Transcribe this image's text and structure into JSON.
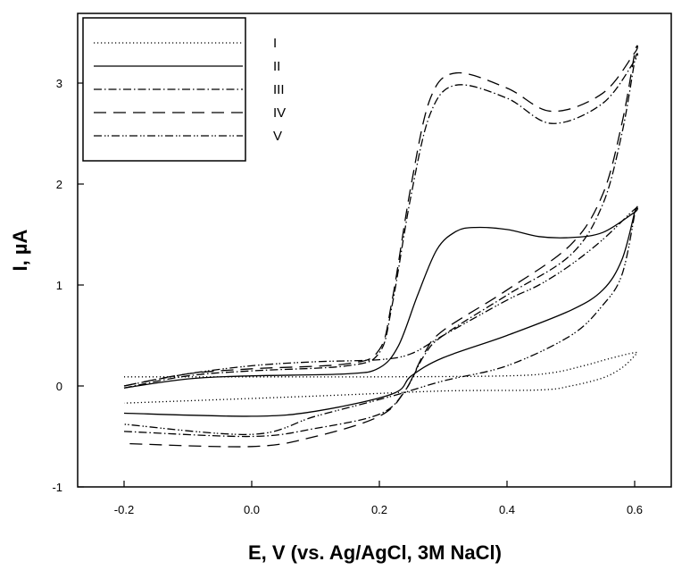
{
  "chart_data": {
    "type": "line",
    "title": "",
    "xlabel": "E, V (vs. Ag/AgCl, 3M NaCl)",
    "ylabel": "I, µA",
    "xlim": [
      -0.27,
      0.66
    ],
    "ylim": [
      -1,
      3.6
    ],
    "xticks": [
      "-0.2",
      "0.0",
      "0.2",
      "0.4",
      "0.6"
    ],
    "yticks": [
      "-1",
      "0",
      "1",
      "2",
      "3"
    ],
    "grid": false,
    "legend_position": "top-left",
    "series": [
      {
        "name": "I",
        "style": "dotted",
        "x": [
          -0.2,
          0.0,
          0.2,
          0.4,
          0.47,
          0.52,
          0.56,
          0.6,
          0.6,
          0.58,
          0.55,
          0.5,
          0.45,
          0.3,
          0.1,
          -0.2
        ],
        "y": [
          0.09,
          0.09,
          0.09,
          0.1,
          0.13,
          0.2,
          0.27,
          0.33,
          0.3,
          0.18,
          0.08,
          0.0,
          -0.04,
          -0.05,
          -0.1,
          -0.17
        ]
      },
      {
        "name": "II",
        "style": "solid",
        "x": [
          -0.2,
          -0.1,
          0.0,
          0.15,
          0.2,
          0.23,
          0.26,
          0.29,
          0.32,
          0.35,
          0.4,
          0.45,
          0.5,
          0.55,
          0.6,
          0.6,
          0.58,
          0.55,
          0.5,
          0.4,
          0.3,
          0.25,
          0.22,
          0.1,
          0.0,
          -0.2
        ],
        "y": [
          -0.02,
          0.07,
          0.1,
          0.12,
          0.18,
          0.4,
          0.9,
          1.35,
          1.53,
          1.57,
          1.55,
          1.48,
          1.47,
          1.52,
          1.72,
          1.72,
          1.25,
          0.95,
          0.75,
          0.5,
          0.28,
          0.1,
          -0.08,
          -0.25,
          -0.3,
          -0.27
        ]
      },
      {
        "name": "III",
        "style": "dash-dot",
        "x": [
          -0.2,
          -0.1,
          0.0,
          0.15,
          0.2,
          0.22,
          0.25,
          0.28,
          0.32,
          0.4,
          0.47,
          0.55,
          0.6,
          0.6,
          0.58,
          0.55,
          0.5,
          0.4,
          0.3,
          0.27,
          0.24,
          0.2,
          0.1,
          0.0,
          -0.2
        ],
        "y": [
          -0.02,
          0.1,
          0.15,
          0.2,
          0.33,
          0.8,
          1.9,
          2.7,
          2.98,
          2.85,
          2.6,
          2.8,
          3.22,
          3.22,
          2.5,
          1.8,
          1.3,
          0.9,
          0.5,
          0.3,
          -0.05,
          -0.28,
          -0.42,
          -0.5,
          -0.45
        ]
      },
      {
        "name": "IV",
        "style": "dashed",
        "x": [
          -0.2,
          -0.1,
          0.0,
          0.15,
          0.2,
          0.22,
          0.25,
          0.28,
          0.32,
          0.4,
          0.47,
          0.55,
          0.6,
          0.6,
          0.58,
          0.55,
          0.5,
          0.4,
          0.3,
          0.27,
          0.24,
          0.2,
          0.1,
          0.0,
          -0.2
        ],
        "y": [
          0.0,
          0.12,
          0.17,
          0.22,
          0.36,
          0.85,
          2.0,
          2.85,
          3.1,
          2.95,
          2.72,
          2.9,
          3.3,
          3.3,
          2.6,
          1.9,
          1.4,
          0.95,
          0.55,
          0.32,
          -0.05,
          -0.3,
          -0.5,
          -0.6,
          -0.57
        ]
      },
      {
        "name": "V",
        "style": "dash-dot-dot",
        "x": [
          -0.2,
          -0.1,
          0.0,
          0.1,
          0.2,
          0.25,
          0.3,
          0.4,
          0.45,
          0.5,
          0.55,
          0.6,
          0.6,
          0.58,
          0.55,
          0.5,
          0.4,
          0.3,
          0.22,
          0.1,
          0.0,
          -0.2
        ],
        "y": [
          0.0,
          0.12,
          0.2,
          0.24,
          0.26,
          0.32,
          0.5,
          0.85,
          1.0,
          1.2,
          1.45,
          1.75,
          1.7,
          1.1,
          0.8,
          0.5,
          0.2,
          0.05,
          -0.1,
          -0.3,
          -0.48,
          -0.38
        ]
      }
    ]
  },
  "colors": {
    "line": "#000000",
    "background": "#ffffff"
  }
}
